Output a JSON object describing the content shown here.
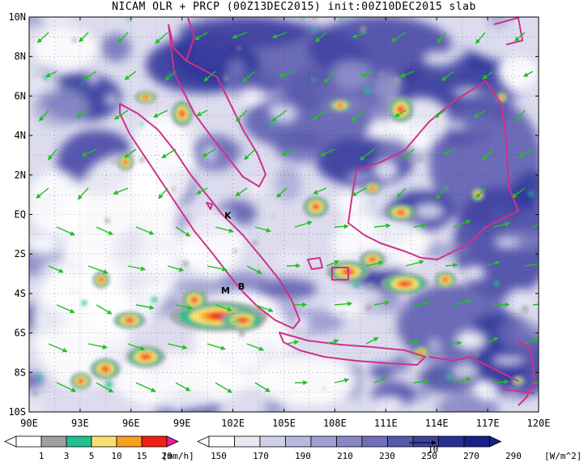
{
  "title": "NICAM OLR + PRCP (00Z13DEC2015) init:00Z10DEC2015 slab",
  "map": {
    "lat_ticks": [
      "10N",
      "8N",
      "6N",
      "4N",
      "2N",
      "EQ",
      "2S",
      "4S",
      "6S",
      "8S",
      "10S"
    ],
    "lon_ticks": [
      "90E",
      "93E",
      "96E",
      "99E",
      "102E",
      "105E",
      "108E",
      "111E",
      "114E",
      "117E",
      "120E"
    ],
    "lat_range": [
      -10,
      10
    ],
    "lon_range": [
      90,
      120
    ],
    "grid": "dotted",
    "colors": {
      "coastline": "#d0308a",
      "wind_vectors": "#22c022",
      "background_cloud": "#e8e8f4"
    },
    "city_labels": [
      {
        "text": "K",
        "lon": 101.5,
        "lat": -0.2
      },
      {
        "text": "M",
        "lon": 101.3,
        "lat": -4.0
      },
      {
        "text": "B",
        "lon": 102.3,
        "lat": -3.8
      }
    ]
  },
  "precip_legend": {
    "labels": [
      "1",
      "3",
      "5",
      "10",
      "15",
      "20"
    ],
    "unit": "[mm/h]",
    "colors": [
      "#ffffff",
      "#a0a0a0",
      "#20c090",
      "#f8e070",
      "#f8a020",
      "#f02010",
      "#e020a0"
    ]
  },
  "olr_legend": {
    "labels": [
      "150",
      "170",
      "190",
      "210",
      "230",
      "250",
      "270",
      "290"
    ],
    "unit": "[W/m^2]",
    "colors": [
      "#ffffff",
      "#e8e8f4",
      "#d0d0ea",
      "#b8b8de",
      "#a0a0d2",
      "#8888c6",
      "#7070ba",
      "#5858ae",
      "#4040a2",
      "#283096",
      "#18208a"
    ],
    "vector_ref": "10"
  }
}
